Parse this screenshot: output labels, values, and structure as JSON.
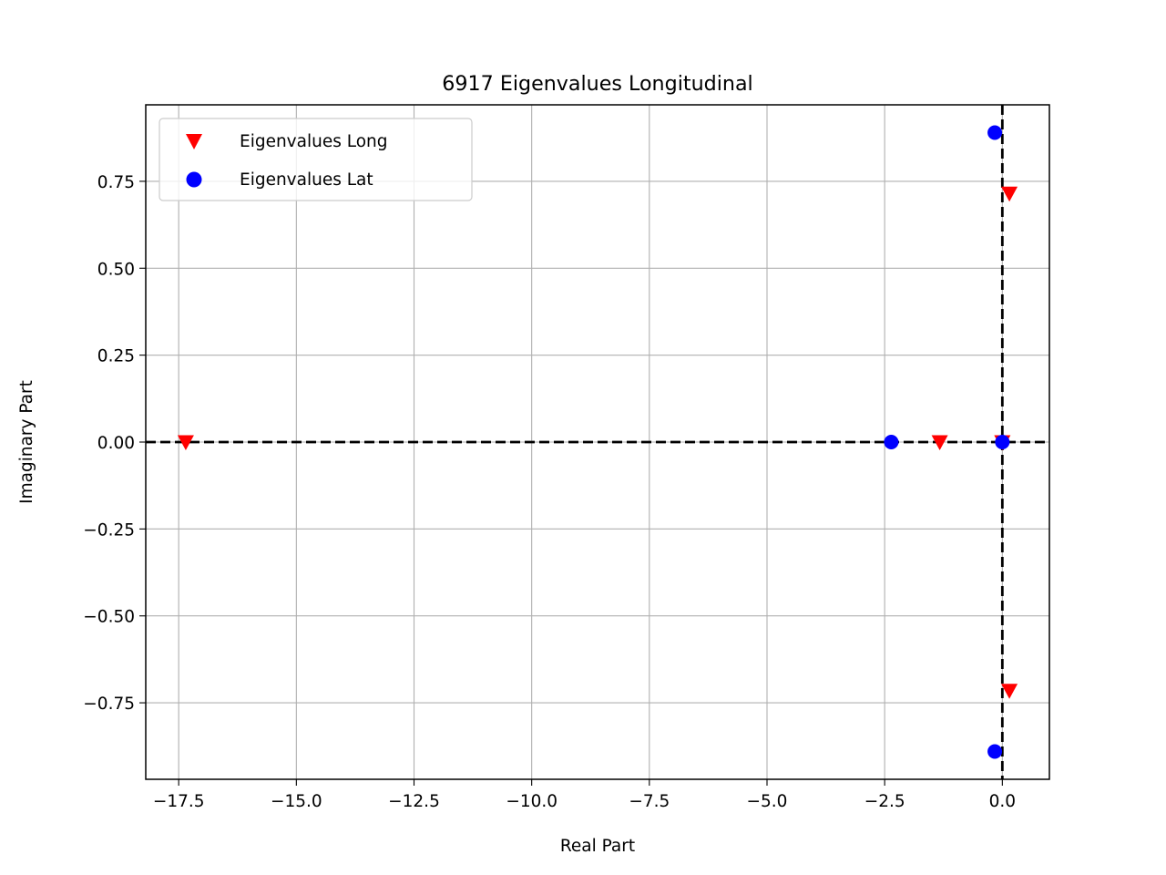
{
  "chart_data": {
    "type": "scatter",
    "title": "6917 Eigenvalues Longitudinal",
    "xlabel": "Real Part",
    "ylabel": "Imaginary Part",
    "xlim": [
      -18.2,
      1.0
    ],
    "ylim": [
      -0.97,
      0.97
    ],
    "xticks": [
      -17.5,
      -15.0,
      -12.5,
      -10.0,
      -7.5,
      -5.0,
      -2.5,
      0.0
    ],
    "xtick_labels": [
      "−17.5",
      "−15.0",
      "−12.5",
      "−10.0",
      "−7.5",
      "−5.0",
      "−2.5",
      "0.0"
    ],
    "yticks": [
      0.75,
      0.5,
      0.25,
      0.0,
      -0.25,
      -0.5,
      -0.75
    ],
    "ytick_labels": [
      "0.75",
      "0.50",
      "0.25",
      "0.00",
      "−0.25",
      "−0.50",
      "−0.75"
    ],
    "grid": true,
    "legend_position": "upper-left",
    "reference_lines": {
      "x": 0,
      "y": 0,
      "style": "dashed",
      "color": "#000000"
    },
    "series": [
      {
        "name": "Eigenvalues Long",
        "marker": "triangle-down",
        "color": "#ff0000",
        "points": [
          {
            "x": -17.35,
            "y": 0.0
          },
          {
            "x": -1.33,
            "y": 0.0
          },
          {
            "x": 0.0,
            "y": 0.0
          },
          {
            "x": 0.15,
            "y": 0.715
          },
          {
            "x": 0.15,
            "y": -0.715
          }
        ]
      },
      {
        "name": "Eigenvalues Lat",
        "marker": "circle",
        "color": "#0000ff",
        "points": [
          {
            "x": -2.36,
            "y": 0.0
          },
          {
            "x": 0.0,
            "y": 0.0
          },
          {
            "x": -0.16,
            "y": 0.89
          },
          {
            "x": -0.16,
            "y": -0.89
          }
        ]
      }
    ]
  }
}
